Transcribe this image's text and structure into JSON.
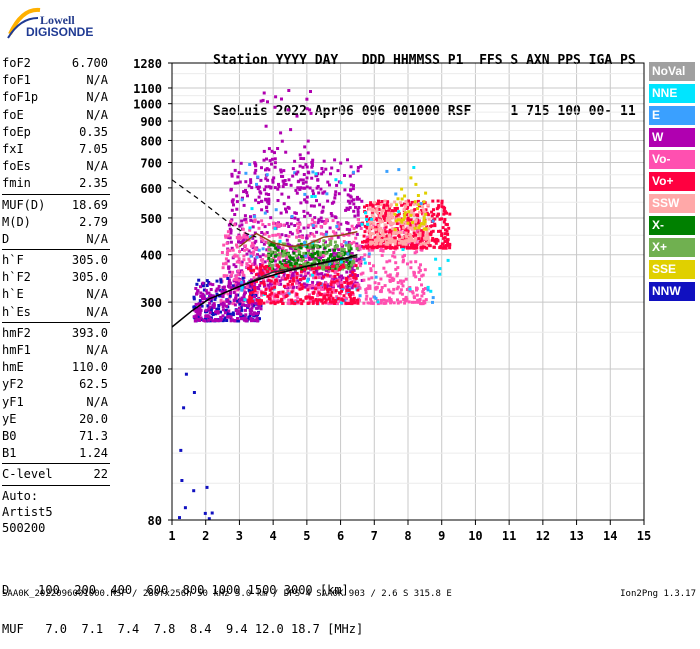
{
  "logo": {
    "line1": "Lowell",
    "line2": "DIGISONDE"
  },
  "header": {
    "line1": "Station YYYY DAY   DDD HHMMSS P1  FFS S AXN PPS IGA PS",
    "line2": "SaoLuis 2022 Apr06 096 001000 RSF     1 715 100 00- 11"
  },
  "params": {
    "group1": [
      {
        "k": "foF2",
        "v": "6.700"
      },
      {
        "k": "foF1",
        "v": "N/A"
      },
      {
        "k": "foF1p",
        "v": "N/A"
      },
      {
        "k": "foE",
        "v": "N/A"
      },
      {
        "k": "foEp",
        "v": "0.35"
      },
      {
        "k": "fxI",
        "v": "7.05"
      },
      {
        "k": "foEs",
        "v": "N/A"
      },
      {
        "k": "fmin",
        "v": "2.35"
      }
    ],
    "group2": [
      {
        "k": "MUF(D)",
        "v": "18.69"
      },
      {
        "k": "M(D)",
        "v": "2.79"
      },
      {
        "k": "D",
        "v": "N/A"
      }
    ],
    "group3": [
      {
        "k": "h`F",
        "v": "305.0"
      },
      {
        "k": "h`F2",
        "v": "305.0"
      },
      {
        "k": "h`E",
        "v": "N/A"
      },
      {
        "k": "h`Es",
        "v": "N/A"
      }
    ],
    "group4": [
      {
        "k": "hmF2",
        "v": "393.0"
      },
      {
        "k": "hmF1",
        "v": "N/A"
      },
      {
        "k": "hmE",
        "v": "110.0"
      },
      {
        "k": "yF2",
        "v": "62.5"
      },
      {
        "k": "yF1",
        "v": "N/A"
      },
      {
        "k": "yE",
        "v": "20.0"
      },
      {
        "k": "B0",
        "v": "71.3"
      },
      {
        "k": "B1",
        "v": "1.24"
      }
    ],
    "clevel": {
      "k": "C-level",
      "v": "22"
    },
    "auto": [
      "Auto:",
      "Artist5",
      "500200"
    ]
  },
  "legend": [
    {
      "label": "NoVal",
      "color": "#a0a0a0"
    },
    {
      "label": "NNE",
      "color": "#00e5ff"
    },
    {
      "label": "E",
      "color": "#3aa0ff"
    },
    {
      "label": "W",
      "color": "#b000b0"
    },
    {
      "label": "Vo-",
      "color": "#ff50b0"
    },
    {
      "label": "Vo+",
      "color": "#ff0040"
    },
    {
      "label": "SSW",
      "color": "#ffa8a8"
    },
    {
      "label": "X-",
      "color": "#008000"
    },
    {
      "label": "X+",
      "color": "#70b050"
    },
    {
      "label": "SSE",
      "color": "#e0d000"
    },
    {
      "label": "NNW",
      "color": "#1010c0"
    }
  ],
  "chart_data": {
    "type": "scatter",
    "title": "",
    "xlabel": "",
    "ylabel": "",
    "xlim": [
      1,
      15
    ],
    "ylim": [
      80,
      1280
    ],
    "y_scale": "log",
    "grid": true,
    "legend_position": "right",
    "x_ticks": [
      1,
      2,
      3,
      4,
      5,
      6,
      7,
      8,
      9,
      10,
      11,
      12,
      13,
      14,
      15
    ],
    "y_ticks": [
      80,
      200,
      300,
      400,
      500,
      600,
      700,
      800,
      900,
      1000,
      1100,
      1280
    ],
    "y_tick_labels": [
      "80",
      "200",
      "300",
      "400",
      "500",
      "600",
      "700",
      "800",
      "900",
      "1000",
      "1100",
      "1280"
    ],
    "clusters": [
      {
        "color": "#b000b0",
        "x": [
          2.6,
          6.6
        ],
        "y": [
          330,
          720
        ],
        "n": 700
      },
      {
        "color": "#ff50b0",
        "x": [
          2.4,
          8.5
        ],
        "y": [
          300,
          500
        ],
        "n": 700
      },
      {
        "color": "#ff0040",
        "x": [
          6.6,
          9.2
        ],
        "y": [
          420,
          560
        ],
        "n": 400
      },
      {
        "color": "#ffa8a8",
        "x": [
          6.8,
          8.6
        ],
        "y": [
          430,
          560
        ],
        "n": 220
      },
      {
        "color": "#1010c0",
        "x": [
          1.6,
          3.6
        ],
        "y": [
          270,
          350
        ],
        "n": 160
      },
      {
        "color": "#b000b0",
        "x": [
          1.6,
          3.6
        ],
        "y": [
          270,
          340
        ],
        "n": 200
      },
      {
        "color": "#008000",
        "x": [
          3.8,
          6.3
        ],
        "y": [
          370,
          430
        ],
        "n": 180
      },
      {
        "color": "#70b050",
        "x": [
          3.8,
          6.5
        ],
        "y": [
          370,
          440
        ],
        "n": 120
      },
      {
        "color": "#e0d000",
        "x": [
          7.5,
          8.5
        ],
        "y": [
          470,
          650
        ],
        "n": 40
      },
      {
        "color": "#3aa0ff",
        "x": [
          3.0,
          8.8
        ],
        "y": [
          300,
          700
        ],
        "n": 60
      },
      {
        "color": "#00e5ff",
        "x": [
          3.0,
          9.2
        ],
        "y": [
          300,
          700
        ],
        "n": 40
      },
      {
        "color": "#b000b0",
        "x": [
          3.4,
          5.2
        ],
        "y": [
          600,
          1100
        ],
        "n": 60
      },
      {
        "color": "#ff0040",
        "x": [
          3.2,
          6.5
        ],
        "y": [
          300,
          380
        ],
        "n": 250
      },
      {
        "color": "#1010c0",
        "x": [
          1.0,
          2.2
        ],
        "y": [
          80,
          260
        ],
        "n": 12
      }
    ],
    "profile_solid": {
      "x": [
        1.0,
        1.6,
        2.1,
        2.5,
        3.0,
        3.6,
        4.3,
        5.0,
        5.7,
        6.2,
        6.5
      ],
      "y": [
        258,
        285,
        306,
        316,
        330,
        345,
        360,
        373,
        385,
        393,
        400
      ]
    },
    "profile_dashed": {
      "x": [
        1.0,
        1.8,
        2.5,
        2.9,
        3.2,
        3.5
      ],
      "y": [
        630,
        560,
        500,
        470,
        455,
        445
      ]
    },
    "trace_dark": {
      "x": [
        2.5,
        3.0,
        3.5,
        4.0,
        4.5,
        5.0,
        5.5,
        6.0,
        6.5
      ],
      "y": [
        316,
        330,
        345,
        360,
        367,
        373,
        380,
        388,
        395
      ]
    },
    "trace_brown": {
      "x": [
        3.0,
        3.5,
        4.0,
        4.5,
        5.0,
        5.5,
        6.0,
        6.5
      ],
      "y": [
        420,
        455,
        430,
        420,
        425,
        445,
        450,
        460
      ]
    }
  },
  "bottom": {
    "d_line": "D    100  200  400  600  800 1000 1500 3000 [km]",
    "muf_line": "MUF   7.0  7.1  7.4  7.8  8.4  9.4 12.0 18.7 [MHz]"
  },
  "footer": {
    "left": "SAA0K_2022096001000.RSF / 280fx256h 50 kHz 5.0 km / DPS-4 SAA0K 903 / 2.6 S 315.8 E",
    "right": "Ion2Png 1.3.17"
  }
}
